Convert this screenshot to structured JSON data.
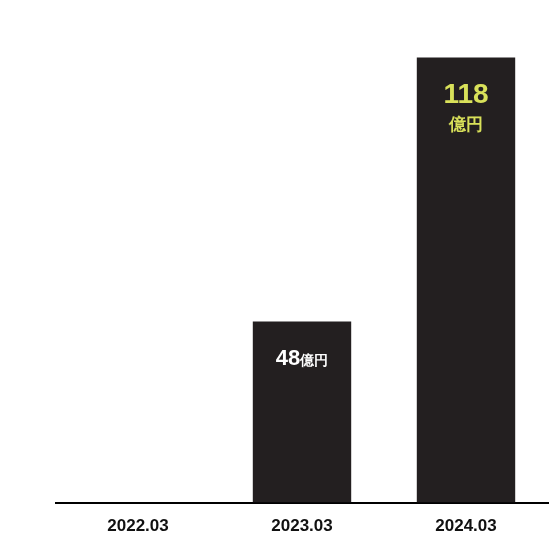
{
  "chart_data": {
    "type": "bar",
    "categories": [
      "2022.03",
      "2023.03",
      "2024.03"
    ],
    "values": [
      null,
      48,
      118
    ],
    "value_labels": [
      null,
      "48億円",
      "118億円"
    ],
    "data_labels": true,
    "color": "#231f20",
    "ylim": [
      0,
      120
    ],
    "tick_labels": "x",
    "grid": false
  }
}
